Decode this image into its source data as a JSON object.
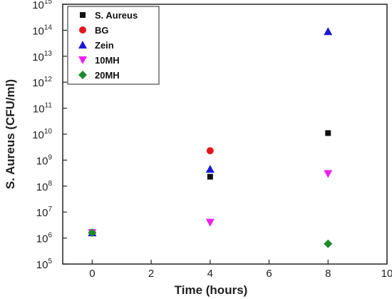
{
  "chart_data": {
    "type": "scatter",
    "title": "",
    "xlabel": "Time (hours)",
    "ylabel": "S. Aureus (CFU/ml)",
    "xlim": [
      -1,
      10
    ],
    "ylim_log10": [
      5,
      15
    ],
    "yscale": "log",
    "grid": false,
    "legend_position": "top-left",
    "x_ticks": [
      "0",
      "2",
      "4",
      "6",
      "8",
      "10"
    ],
    "y_tick_base": "10",
    "y_tick_exponents": [
      "5",
      "6",
      "7",
      "8",
      "9",
      "10",
      "11",
      "12",
      "13",
      "14",
      "15"
    ],
    "series": [
      {
        "name": "S. Aureus",
        "marker": "square",
        "color": "#111111",
        "points": [
          {
            "x": 0,
            "y": 1600000.0
          },
          {
            "x": 4,
            "y": 230000000.0
          },
          {
            "x": 8,
            "y": 11000000000.0
          }
        ]
      },
      {
        "name": "BG",
        "marker": "circle",
        "color": "#e8141b",
        "points": [
          {
            "x": 0,
            "y": 1600000.0
          },
          {
            "x": 4,
            "y": 2300000000.0
          }
        ]
      },
      {
        "name": "Zein",
        "marker": "triangle-up",
        "color": "#1a1ad6",
        "points": [
          {
            "x": 0,
            "y": 1600000.0
          },
          {
            "x": 4,
            "y": 450000000.0
          },
          {
            "x": 8,
            "y": 90000000000000.0
          }
        ]
      },
      {
        "name": "10MH",
        "marker": "triangle-down",
        "color": "#ee1fee",
        "points": [
          {
            "x": 0,
            "y": 1600000.0
          },
          {
            "x": 4,
            "y": 4000000.0
          },
          {
            "x": 8,
            "y": 300000000.0
          }
        ]
      },
      {
        "name": "20MH",
        "marker": "diamond",
        "color": "#1f8a2a",
        "points": [
          {
            "x": 0,
            "y": 1600000.0
          },
          {
            "x": 8,
            "y": 600000.0
          }
        ]
      }
    ]
  }
}
